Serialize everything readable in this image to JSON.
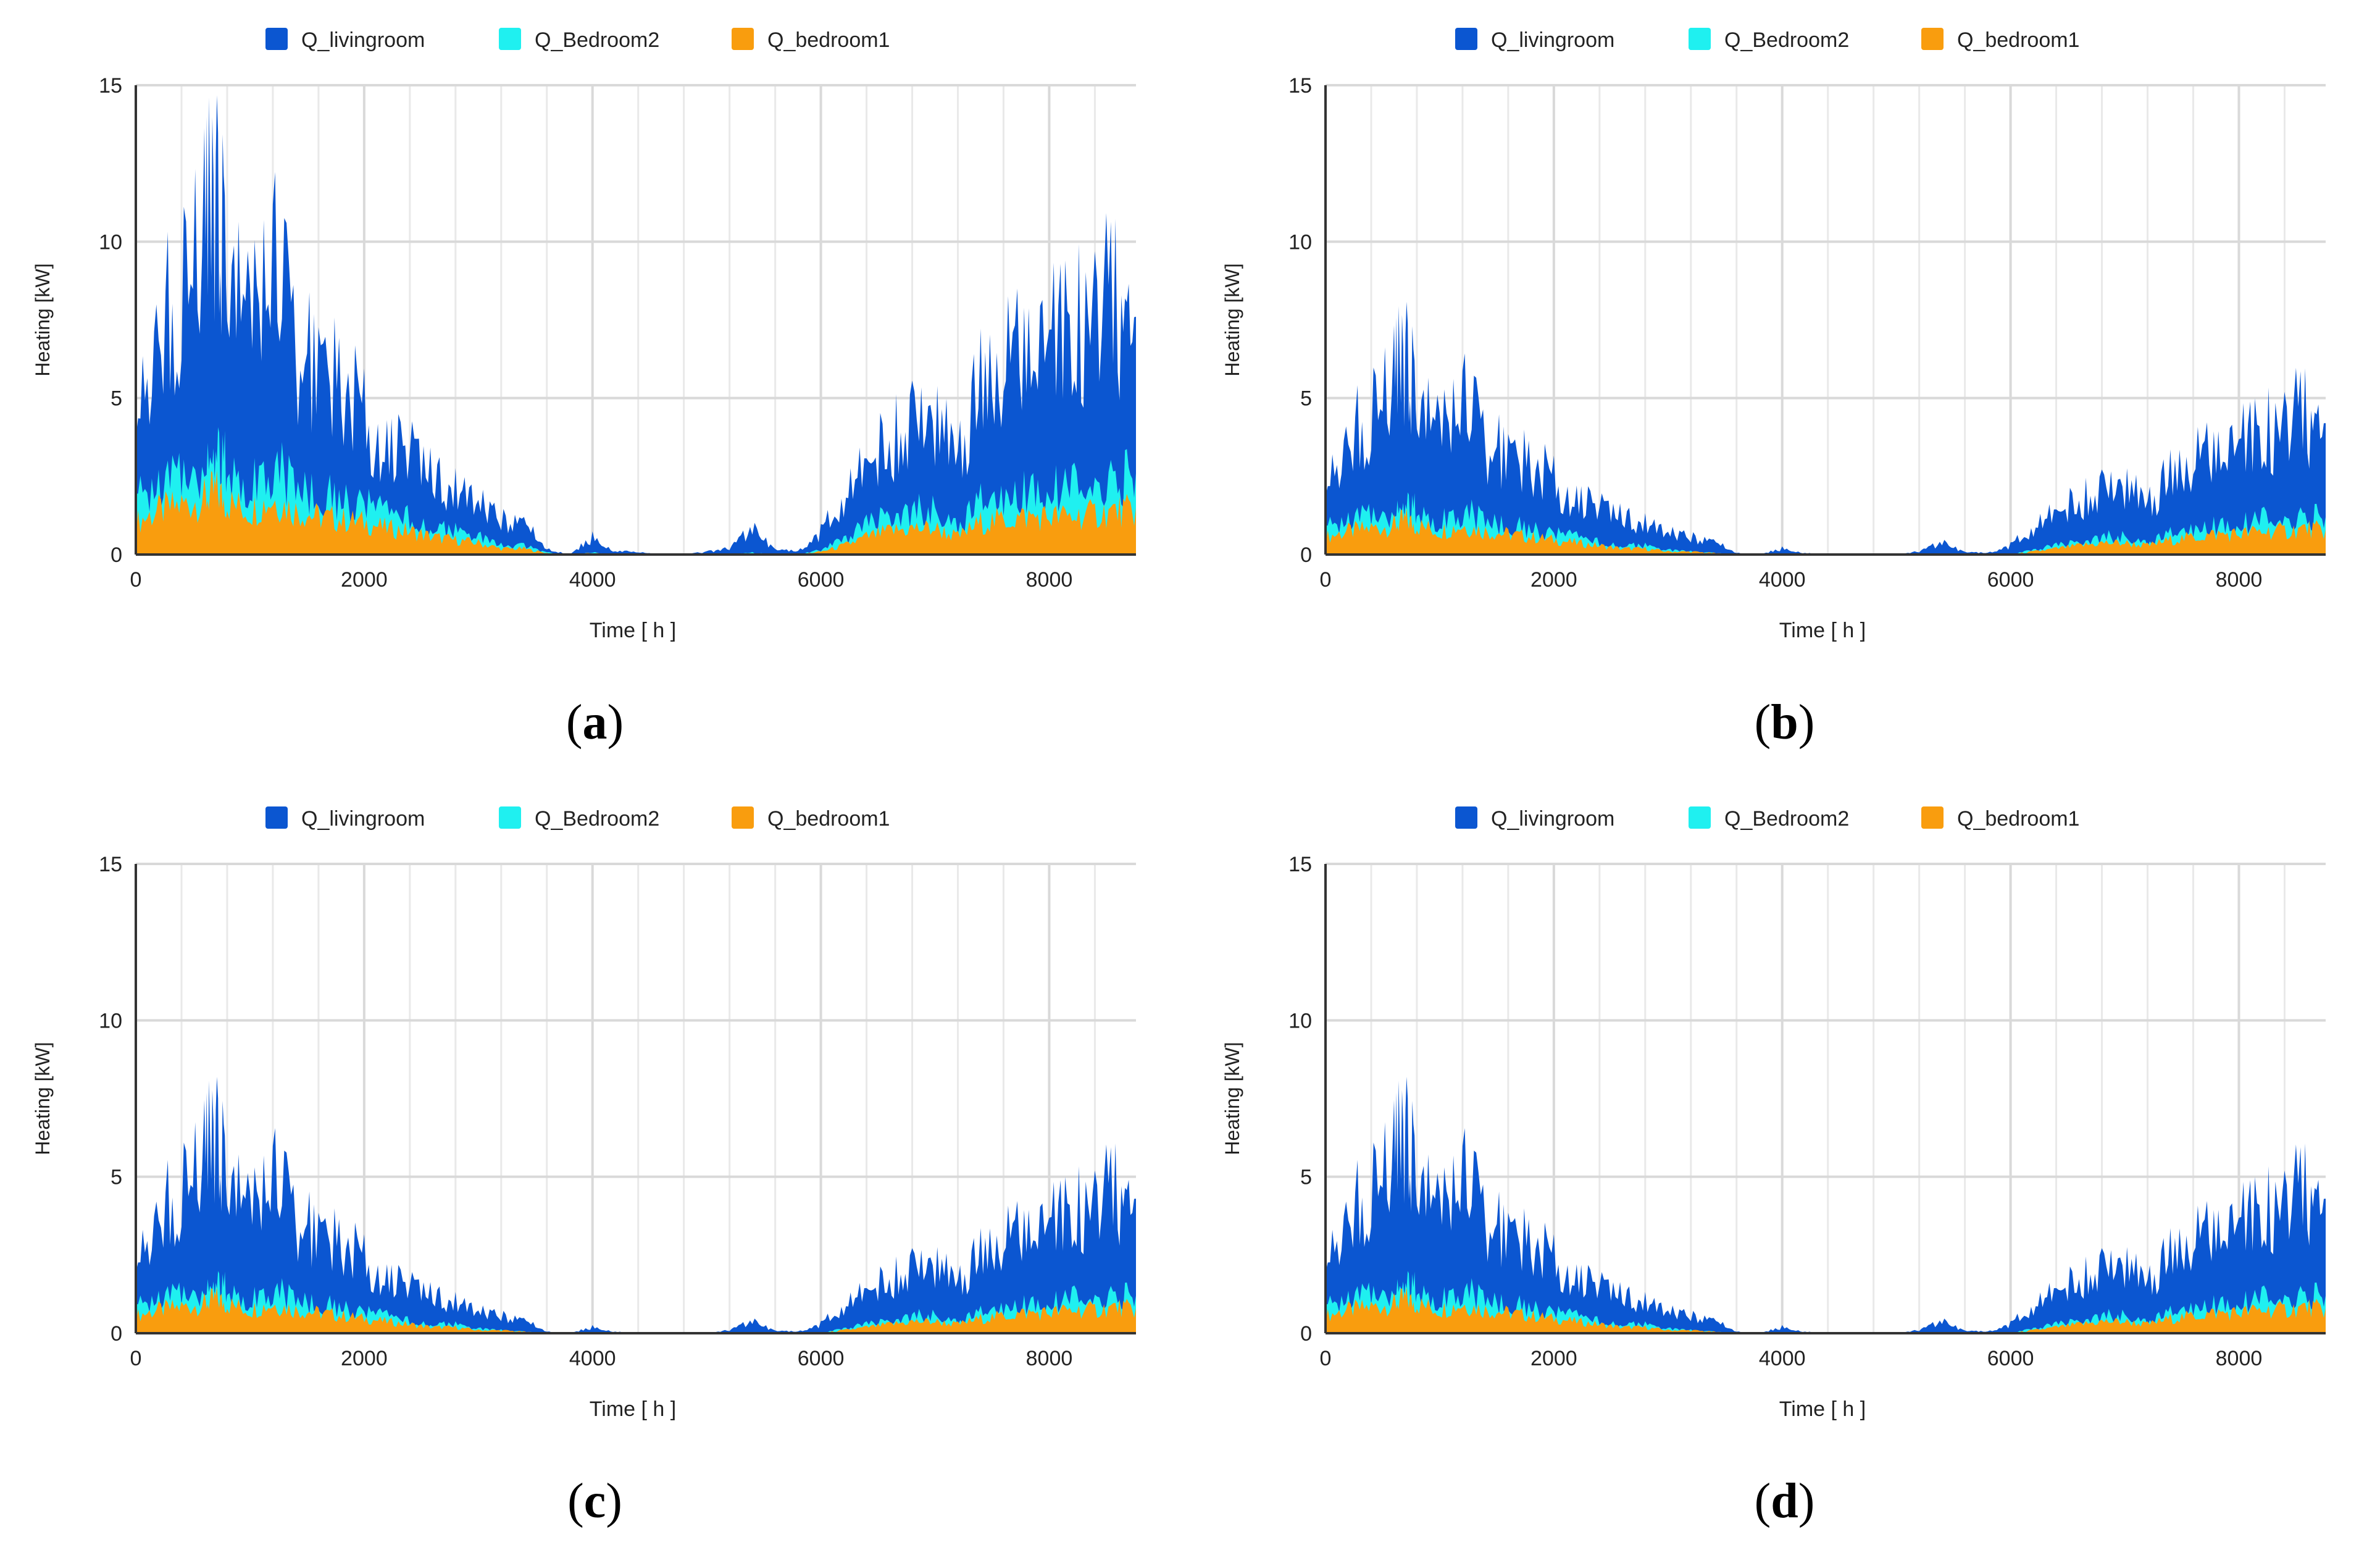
{
  "colors": {
    "livingroom": "#0b56d1",
    "bedroom2": "#1ff0f0",
    "bedroom1": "#f99d0e",
    "grid": "#d9d9d9",
    "axis": "#333333",
    "text": "#222222"
  },
  "chart_data": [
    {
      "id": "a",
      "type": "area",
      "stacked": true,
      "panel_label": "a",
      "xlabel": "Time [ h ]",
      "ylabel": "Heating [kW]",
      "xlim": [
        0,
        8760
      ],
      "ylim": [
        0,
        15
      ],
      "xticks": [
        0,
        2000,
        4000,
        6000,
        8000
      ],
      "yticks": [
        0,
        5,
        10,
        15
      ],
      "legend": [
        "Q_livingroom",
        "Q_Bedroom2",
        "Q_bedroom1"
      ],
      "x": [
        0,
        200,
        400,
        600,
        700,
        800,
        1000,
        1200,
        1400,
        1600,
        1800,
        2000,
        2200,
        2400,
        2600,
        2800,
        3000,
        3200,
        3400,
        3600,
        3800,
        4000,
        4200,
        4400,
        4600,
        4800,
        5000,
        5200,
        5400,
        5600,
        5800,
        6000,
        6200,
        6400,
        6600,
        6800,
        7000,
        7200,
        7400,
        7600,
        7800,
        8000,
        8200,
        8400,
        8600,
        8760
      ],
      "series": [
        {
          "name": "Q_bedroom1",
          "values": [
            1.1,
            1.5,
            1.7,
            1.9,
            2.2,
            1.8,
            1.5,
            1.9,
            1.5,
            1.3,
            1.2,
            1.1,
            0.9,
            0.8,
            0.6,
            0.5,
            0.4,
            0.2,
            0.2,
            0.05,
            0.0,
            0.05,
            0.0,
            0.0,
            0.0,
            0.0,
            0.0,
            0.0,
            0.05,
            0.0,
            0.0,
            0.1,
            0.3,
            0.6,
            0.8,
            0.9,
            0.9,
            0.6,
            1.1,
            1.2,
            1.3,
            1.3,
            1.3,
            1.4,
            1.5,
            1.5
          ]
        },
        {
          "name": "Q_Bedroom2",
          "values": [
            0.8,
            0.9,
            1.1,
            1.2,
            1.5,
            1.2,
            1.0,
            1.2,
            0.9,
            0.8,
            0.7,
            0.6,
            0.5,
            0.4,
            0.3,
            0.3,
            0.2,
            0.1,
            0.1,
            0.02,
            0.0,
            0.02,
            0.0,
            0.0,
            0.0,
            0.0,
            0.0,
            0.0,
            0.02,
            0.0,
            0.0,
            0.05,
            0.2,
            0.4,
            0.5,
            0.6,
            0.6,
            0.4,
            0.7,
            0.8,
            0.9,
            0.9,
            1.0,
            1.0,
            1.1,
            1.1
          ]
        },
        {
          "name": "Q_livingroom",
          "values": [
            3.5,
            5.0,
            6.5,
            7.5,
            9.0,
            6.5,
            5.5,
            7.0,
            5.0,
            4.5,
            4.0,
            3.0,
            2.5,
            2.3,
            1.8,
            1.5,
            1.2,
            0.9,
            0.8,
            0.1,
            0.0,
            0.5,
            0.1,
            0.1,
            0.0,
            0.0,
            0.1,
            0.2,
            0.8,
            0.2,
            0.1,
            0.6,
            1.5,
            2.2,
            2.5,
            3.0,
            3.0,
            2.3,
            4.0,
            4.5,
            4.8,
            5.2,
            5.5,
            5.8,
            6.2,
            5.0
          ]
        }
      ]
    },
    {
      "id": "b",
      "type": "area",
      "stacked": true,
      "panel_label": "b",
      "xlabel": "Time [ h ]",
      "ylabel": "Heating [kW]",
      "xlim": [
        0,
        8760
      ],
      "ylim": [
        0,
        15
      ],
      "xticks": [
        0,
        2000,
        4000,
        6000,
        8000
      ],
      "yticks": [
        0,
        5,
        10,
        15
      ],
      "legend": [
        "Q_livingroom",
        "Q_Bedroom2",
        "Q_bedroom1"
      ],
      "x": [
        0,
        200,
        400,
        600,
        700,
        800,
        1000,
        1200,
        1400,
        1600,
        1800,
        2000,
        2200,
        2400,
        2600,
        2800,
        3000,
        3200,
        3400,
        3600,
        3800,
        4000,
        4200,
        4400,
        4600,
        4800,
        5000,
        5200,
        5400,
        5600,
        5800,
        6000,
        6200,
        6400,
        6600,
        6800,
        7000,
        7200,
        7400,
        7600,
        7800,
        8000,
        8200,
        8400,
        8600,
        8760
      ],
      "series": [
        {
          "name": "Q_bedroom1",
          "values": [
            0.6,
            0.8,
            0.9,
            1.0,
            1.2,
            1.0,
            0.8,
            1.0,
            0.8,
            0.7,
            0.6,
            0.5,
            0.4,
            0.3,
            0.2,
            0.2,
            0.1,
            0.1,
            0.05,
            0.0,
            0.0,
            0.0,
            0.0,
            0.0,
            0.0,
            0.0,
            0.0,
            0.0,
            0.0,
            0.0,
            0.0,
            0.0,
            0.1,
            0.2,
            0.3,
            0.4,
            0.4,
            0.3,
            0.5,
            0.6,
            0.7,
            0.7,
            0.8,
            0.8,
            0.9,
            0.8
          ]
        },
        {
          "name": "Q_Bedroom2",
          "values": [
            0.3,
            0.4,
            0.5,
            0.5,
            0.6,
            0.5,
            0.4,
            0.5,
            0.4,
            0.3,
            0.3,
            0.2,
            0.2,
            0.1,
            0.1,
            0.1,
            0.05,
            0.0,
            0.0,
            0.0,
            0.0,
            0.0,
            0.0,
            0.0,
            0.0,
            0.0,
            0.0,
            0.0,
            0.0,
            0.0,
            0.0,
            0.0,
            0.05,
            0.1,
            0.1,
            0.2,
            0.2,
            0.1,
            0.2,
            0.3,
            0.3,
            0.3,
            0.4,
            0.4,
            0.4,
            0.4
          ]
        },
        {
          "name": "Q_livingroom",
          "values": [
            1.8,
            2.6,
            3.6,
            4.2,
            5.2,
            3.6,
            3.0,
            3.8,
            2.8,
            2.5,
            2.2,
            1.8,
            1.4,
            1.2,
            1.0,
            0.8,
            0.6,
            0.5,
            0.4,
            0.05,
            0.0,
            0.2,
            0.05,
            0.0,
            0.0,
            0.0,
            0.0,
            0.1,
            0.4,
            0.1,
            0.05,
            0.3,
            0.8,
            1.2,
            1.4,
            1.6,
            1.7,
            1.3,
            2.0,
            2.3,
            2.5,
            2.8,
            3.0,
            3.2,
            3.6,
            3.0
          ]
        }
      ]
    },
    {
      "id": "c",
      "type": "area",
      "stacked": true,
      "panel_label": "c",
      "xlabel": "Time [ h ]",
      "ylabel": "Heating [kW]",
      "xlim": [
        0,
        8760
      ],
      "ylim": [
        0,
        15
      ],
      "xticks": [
        0,
        2000,
        4000,
        6000,
        8000
      ],
      "yticks": [
        0,
        5,
        10,
        15
      ],
      "legend": [
        "Q_livingroom",
        "Q_Bedroom2",
        "Q_bedroom1"
      ],
      "x": [
        0,
        200,
        400,
        600,
        700,
        800,
        1000,
        1200,
        1400,
        1600,
        1800,
        2000,
        2200,
        2400,
        2600,
        2800,
        3000,
        3200,
        3400,
        3600,
        3800,
        4000,
        4200,
        4400,
        4600,
        4800,
        5000,
        5200,
        5400,
        5600,
        5800,
        6000,
        6200,
        6400,
        6600,
        6800,
        7000,
        7200,
        7400,
        7600,
        7800,
        8000,
        8200,
        8400,
        8600,
        8760
      ],
      "series": [
        {
          "name": "Q_bedroom1",
          "values": [
            0.6,
            0.8,
            0.9,
            1.0,
            1.2,
            1.0,
            0.8,
            1.0,
            0.8,
            0.7,
            0.6,
            0.5,
            0.4,
            0.3,
            0.2,
            0.2,
            0.1,
            0.1,
            0.05,
            0.0,
            0.0,
            0.0,
            0.0,
            0.0,
            0.0,
            0.0,
            0.0,
            0.0,
            0.0,
            0.0,
            0.0,
            0.0,
            0.1,
            0.2,
            0.3,
            0.4,
            0.4,
            0.3,
            0.5,
            0.6,
            0.7,
            0.7,
            0.8,
            0.8,
            0.9,
            0.8
          ]
        },
        {
          "name": "Q_Bedroom2",
          "values": [
            0.3,
            0.4,
            0.5,
            0.5,
            0.6,
            0.5,
            0.4,
            0.5,
            0.4,
            0.3,
            0.3,
            0.2,
            0.2,
            0.1,
            0.1,
            0.1,
            0.05,
            0.0,
            0.0,
            0.0,
            0.0,
            0.0,
            0.0,
            0.0,
            0.0,
            0.0,
            0.0,
            0.0,
            0.0,
            0.0,
            0.0,
            0.0,
            0.05,
            0.1,
            0.1,
            0.2,
            0.2,
            0.1,
            0.2,
            0.3,
            0.3,
            0.3,
            0.4,
            0.4,
            0.4,
            0.4
          ]
        },
        {
          "name": "Q_livingroom",
          "values": [
            1.9,
            2.7,
            3.7,
            4.3,
            5.3,
            3.7,
            3.0,
            3.9,
            2.9,
            2.5,
            2.2,
            1.8,
            1.4,
            1.2,
            1.0,
            0.8,
            0.6,
            0.5,
            0.4,
            0.05,
            0.0,
            0.2,
            0.05,
            0.0,
            0.0,
            0.0,
            0.0,
            0.1,
            0.4,
            0.1,
            0.05,
            0.3,
            0.8,
            1.2,
            1.4,
            1.6,
            1.7,
            1.3,
            2.0,
            2.3,
            2.5,
            2.8,
            3.0,
            3.2,
            3.7,
            3.1
          ]
        }
      ]
    },
    {
      "id": "d",
      "type": "area",
      "stacked": true,
      "panel_label": "d",
      "xlabel": "Time [ h ]",
      "ylabel": "Heating [kW]",
      "xlim": [
        0,
        8760
      ],
      "ylim": [
        0,
        15
      ],
      "xticks": [
        0,
        2000,
        4000,
        6000,
        8000
      ],
      "yticks": [
        0,
        5,
        10,
        15
      ],
      "legend": [
        "Q_livingroom",
        "Q_Bedroom2",
        "Q_bedroom1"
      ],
      "x": [
        0,
        200,
        400,
        600,
        700,
        800,
        1000,
        1200,
        1400,
        1600,
        1800,
        2000,
        2200,
        2400,
        2600,
        2800,
        3000,
        3200,
        3400,
        3600,
        3800,
        4000,
        4200,
        4400,
        4600,
        4800,
        5000,
        5200,
        5400,
        5600,
        5800,
        6000,
        6200,
        6400,
        6600,
        6800,
        7000,
        7200,
        7400,
        7600,
        7800,
        8000,
        8200,
        8400,
        8600,
        8760
      ],
      "series": [
        {
          "name": "Q_bedroom1",
          "values": [
            0.6,
            0.8,
            0.9,
            1.0,
            1.2,
            1.0,
            0.8,
            1.0,
            0.8,
            0.7,
            0.6,
            0.5,
            0.4,
            0.3,
            0.2,
            0.2,
            0.1,
            0.1,
            0.05,
            0.0,
            0.0,
            0.0,
            0.0,
            0.0,
            0.0,
            0.0,
            0.0,
            0.0,
            0.0,
            0.0,
            0.0,
            0.0,
            0.1,
            0.2,
            0.3,
            0.4,
            0.4,
            0.3,
            0.5,
            0.6,
            0.7,
            0.7,
            0.8,
            0.8,
            0.9,
            0.8
          ]
        },
        {
          "name": "Q_Bedroom2",
          "values": [
            0.3,
            0.4,
            0.5,
            0.5,
            0.6,
            0.5,
            0.4,
            0.5,
            0.4,
            0.3,
            0.3,
            0.2,
            0.2,
            0.1,
            0.1,
            0.1,
            0.05,
            0.0,
            0.0,
            0.0,
            0.0,
            0.0,
            0.0,
            0.0,
            0.0,
            0.0,
            0.0,
            0.0,
            0.0,
            0.0,
            0.0,
            0.0,
            0.05,
            0.1,
            0.1,
            0.2,
            0.2,
            0.1,
            0.2,
            0.3,
            0.3,
            0.3,
            0.4,
            0.4,
            0.4,
            0.4
          ]
        },
        {
          "name": "Q_livingroom",
          "values": [
            1.9,
            2.7,
            3.7,
            4.3,
            5.3,
            3.7,
            3.0,
            3.9,
            2.9,
            2.5,
            2.2,
            1.8,
            1.4,
            1.2,
            1.0,
            0.8,
            0.6,
            0.5,
            0.4,
            0.05,
            0.0,
            0.2,
            0.05,
            0.0,
            0.0,
            0.0,
            0.0,
            0.1,
            0.4,
            0.1,
            0.05,
            0.3,
            0.8,
            1.2,
            1.4,
            1.6,
            1.7,
            1.3,
            2.0,
            2.3,
            2.5,
            2.8,
            3.0,
            3.2,
            3.7,
            3.1
          ]
        }
      ]
    }
  ]
}
